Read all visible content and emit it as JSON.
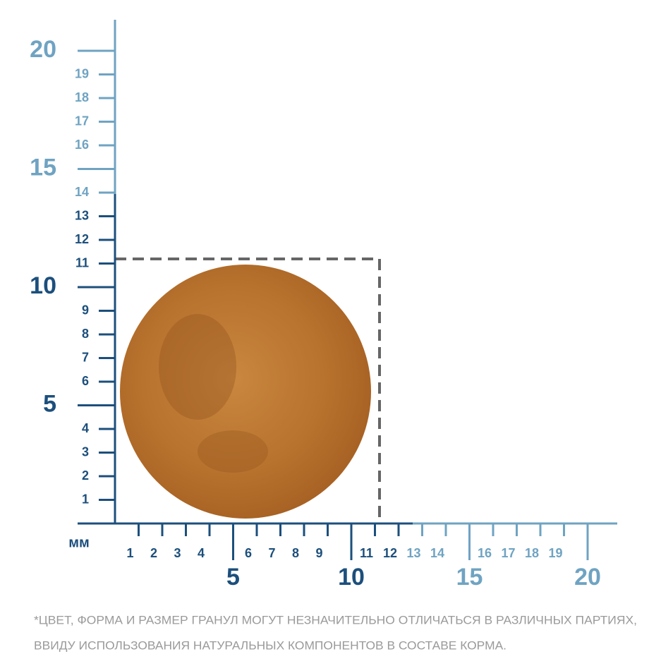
{
  "unit": "мм",
  "y_axis": {
    "labels": [
      "1",
      "2",
      "3",
      "4",
      "6",
      "7",
      "8",
      "9",
      "11",
      "12",
      "13",
      "14",
      "16",
      "17",
      "18",
      "19"
    ],
    "major_labels": [
      "5",
      "10",
      "15",
      "20"
    ]
  },
  "x_axis": {
    "labels": [
      "1",
      "2",
      "3",
      "4",
      "6",
      "7",
      "8",
      "9",
      "11",
      "12",
      "13",
      "14",
      "16",
      "17",
      "18",
      "19"
    ],
    "major_labels": [
      "5",
      "10",
      "15",
      "20"
    ]
  },
  "footnote": [
    "*ЦВЕТ, ФОРМА И РАЗМЕР ГРАНУЛ МОГУТ НЕЗНАЧИТЕЛЬНО ОТЛИЧАТЬСЯ В РАЗЛИЧНЫХ ПАРТИЯХ,",
    "ВВИДУ ИСПОЛЬЗОВАНИЯ НАТУРАЛЬНЫХ КОМПОНЕНТОВ В СОСТАВЕ КОРМА."
  ]
}
